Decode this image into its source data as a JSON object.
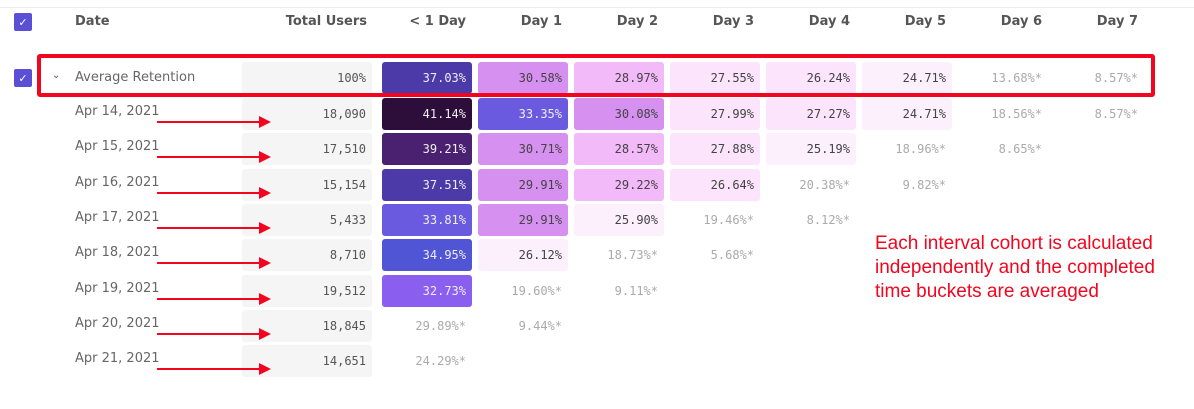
{
  "header": {
    "date": "Date",
    "total_users": "Total Users",
    "buckets": [
      "< 1 Day",
      "Day 1",
      "Day 2",
      "Day 3",
      "Day 4",
      "Day 5",
      "Day 6",
      "Day 7"
    ]
  },
  "checkbox_icon": "check-icon",
  "average": {
    "label": "Average Retention",
    "total": "100%",
    "cells": [
      {
        "v": "37.03%",
        "bg": "#4b3aa8",
        "light": true
      },
      {
        "v": "30.58%",
        "bg": "#d690f0"
      },
      {
        "v": "28.97%",
        "bg": "#f2baf8"
      },
      {
        "v": "27.55%",
        "bg": "#fbe4fc"
      },
      {
        "v": "26.24%",
        "bg": "#fbe4fc"
      },
      {
        "v": "24.71%",
        "bg": "#fdf0fd"
      },
      {
        "v": "13.68%*",
        "est": true
      },
      {
        "v": "8.57%*",
        "est": true
      }
    ]
  },
  "rows": [
    {
      "date": "Apr 14, 2021",
      "total": "18,090",
      "cells": [
        {
          "v": "41.14%",
          "bg": "#2d0e3a",
          "light": true
        },
        {
          "v": "33.35%",
          "bg": "#6a5ae0",
          "light": true
        },
        {
          "v": "30.08%",
          "bg": "#d690f0"
        },
        {
          "v": "27.99%",
          "bg": "#fbe4fc"
        },
        {
          "v": "27.27%",
          "bg": "#fbe4fc"
        },
        {
          "v": "24.71%",
          "bg": "#fdf0fd"
        },
        {
          "v": "18.56%*",
          "est": true
        },
        {
          "v": "8.57%*",
          "est": true
        }
      ]
    },
    {
      "date": "Apr 15, 2021",
      "total": "17,510",
      "cells": [
        {
          "v": "39.21%",
          "bg": "#4a2070",
          "light": true
        },
        {
          "v": "30.71%",
          "bg": "#d690f0"
        },
        {
          "v": "28.57%",
          "bg": "#f2baf8"
        },
        {
          "v": "27.88%",
          "bg": "#fbe4fc"
        },
        {
          "v": "25.19%",
          "bg": "#fdf0fd"
        },
        {
          "v": "18.96%*",
          "est": true
        },
        {
          "v": "8.65%*",
          "est": true
        }
      ]
    },
    {
      "date": "Apr 16, 2021",
      "total": "15,154",
      "cells": [
        {
          "v": "37.51%",
          "bg": "#4b3aa8",
          "light": true
        },
        {
          "v": "29.91%",
          "bg": "#d690f0"
        },
        {
          "v": "29.22%",
          "bg": "#f2baf8"
        },
        {
          "v": "26.64%",
          "bg": "#fbe4fc"
        },
        {
          "v": "20.38%*",
          "est": true
        },
        {
          "v": "9.82%*",
          "est": true
        }
      ]
    },
    {
      "date": "Apr 17, 2021",
      "total": "5,433",
      "cells": [
        {
          "v": "33.81%",
          "bg": "#6a5ae0",
          "light": true
        },
        {
          "v": "29.91%",
          "bg": "#d690f0"
        },
        {
          "v": "25.90%",
          "bg": "#fdf0fd"
        },
        {
          "v": "19.46%*",
          "est": true
        },
        {
          "v": "8.12%*",
          "est": true
        }
      ]
    },
    {
      "date": "Apr 18, 2021",
      "total": "8,710",
      "cells": [
        {
          "v": "34.95%",
          "bg": "#4f55d4",
          "light": true
        },
        {
          "v": "26.12%",
          "bg": "#fdf0fd"
        },
        {
          "v": "18.73%*",
          "est": true
        },
        {
          "v": "5.68%*",
          "est": true
        }
      ]
    },
    {
      "date": "Apr 19, 2021",
      "total": "19,512",
      "cells": [
        {
          "v": "32.73%",
          "bg": "#8a5ff0",
          "light": true
        },
        {
          "v": "19.60%*",
          "est": true
        },
        {
          "v": "9.11%*",
          "est": true
        }
      ]
    },
    {
      "date": "Apr 20, 2021",
      "total": "18,845",
      "cells": [
        {
          "v": "29.89%*",
          "est": true
        },
        {
          "v": "9.44%*",
          "est": true
        }
      ]
    },
    {
      "date": "Apr 21, 2021",
      "total": "14,651",
      "cells": [
        {
          "v": "24.29%*",
          "est": true
        }
      ]
    }
  ],
  "annotation": "Each interval cohort is calculated independently and the completed time buckets are averaged"
}
